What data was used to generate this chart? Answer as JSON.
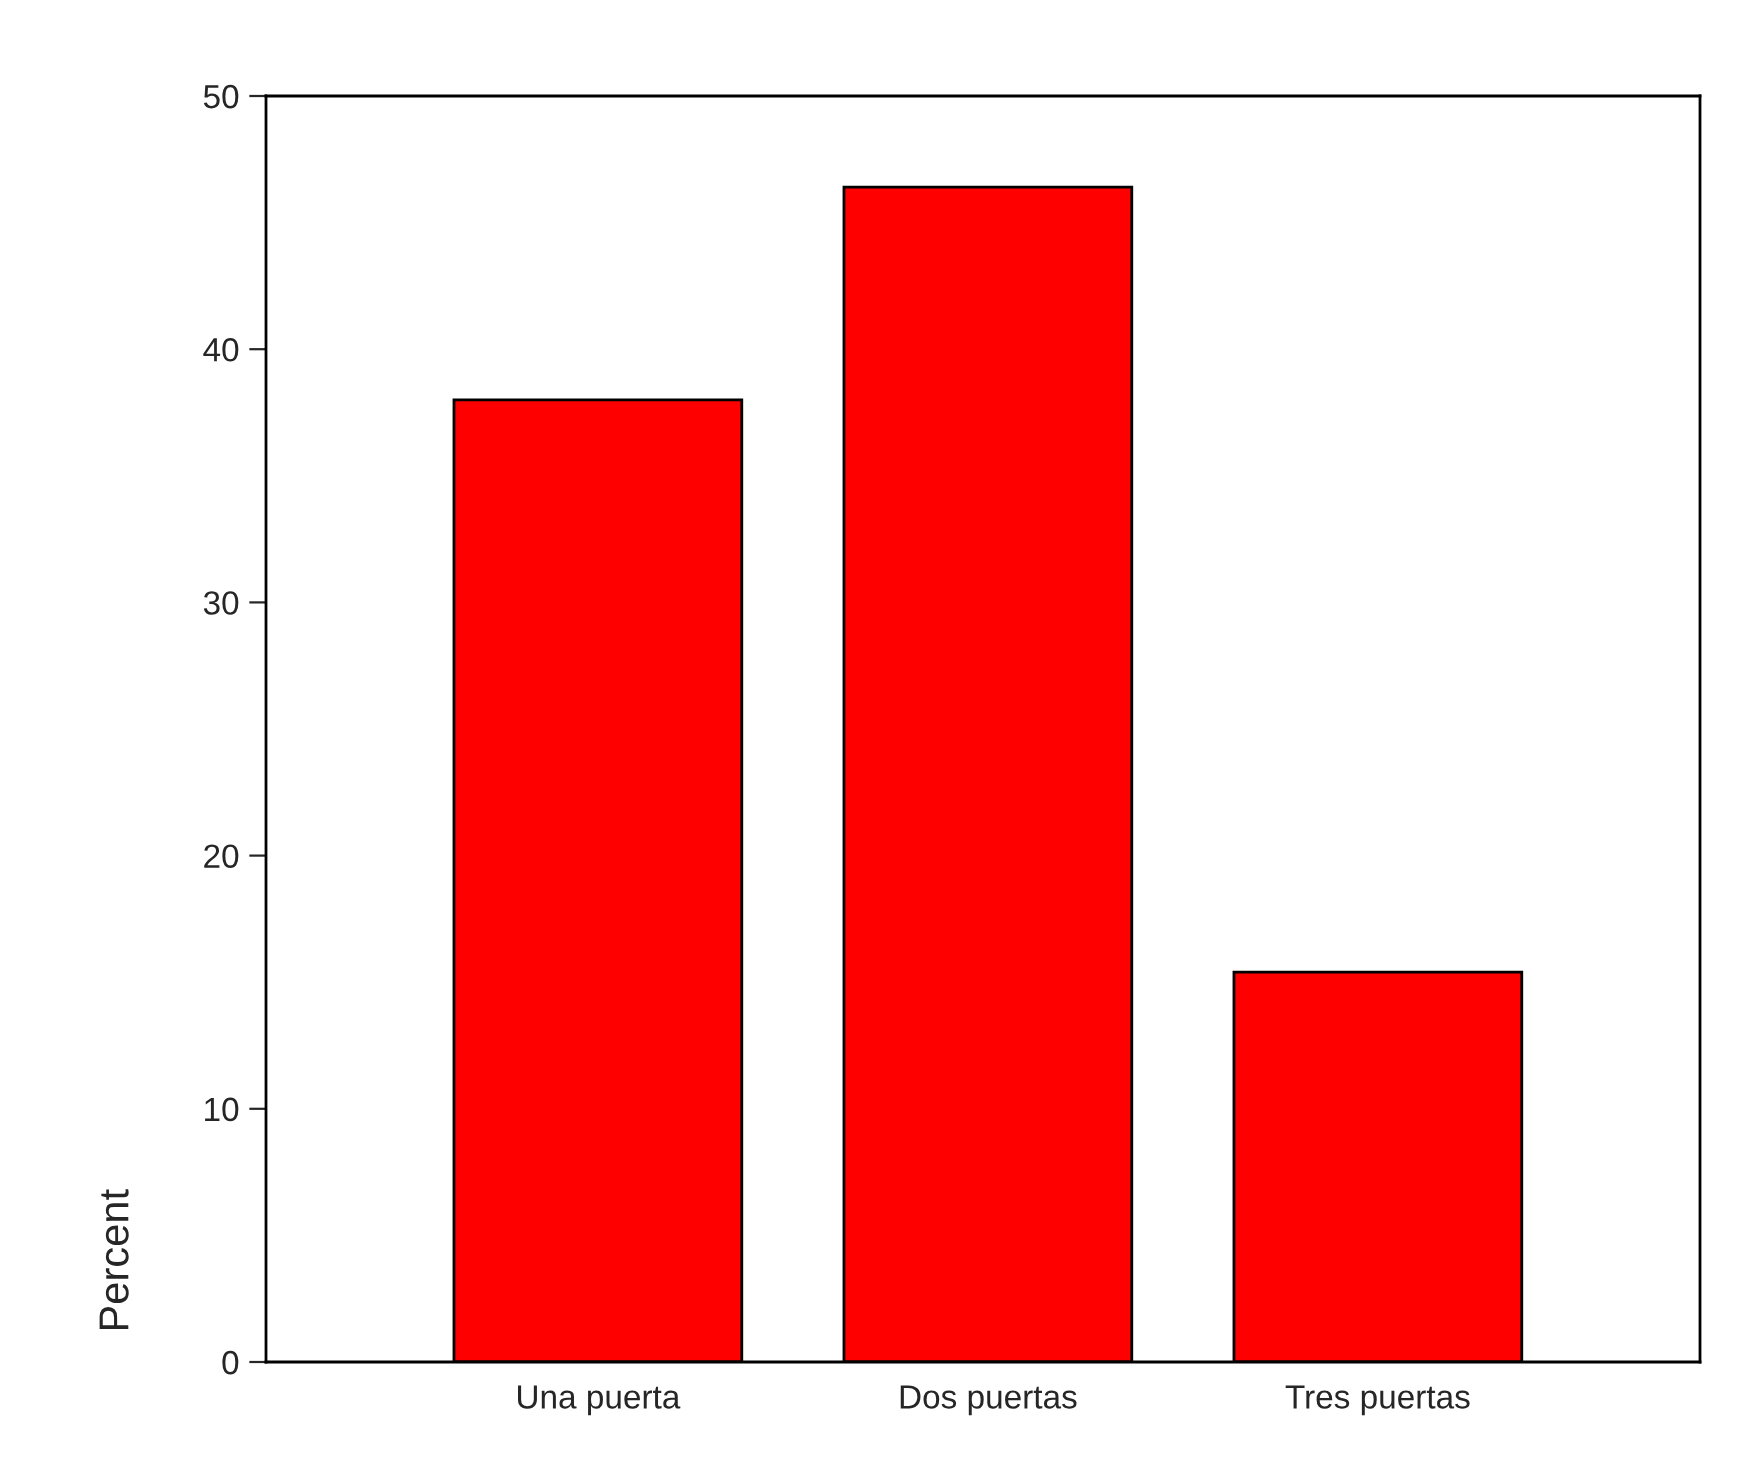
{
  "chart_data": {
    "type": "bar",
    "categories": [
      "Una puerta",
      "Dos puertas",
      "Tres puertas"
    ],
    "values": [
      38.0,
      46.4,
      15.4
    ],
    "color": "#ff0000",
    "ylabel": "Percent",
    "ylim": [
      0,
      50
    ],
    "yticks": [
      0,
      10,
      20,
      30,
      40,
      50
    ],
    "grid": false,
    "legend": false
  }
}
